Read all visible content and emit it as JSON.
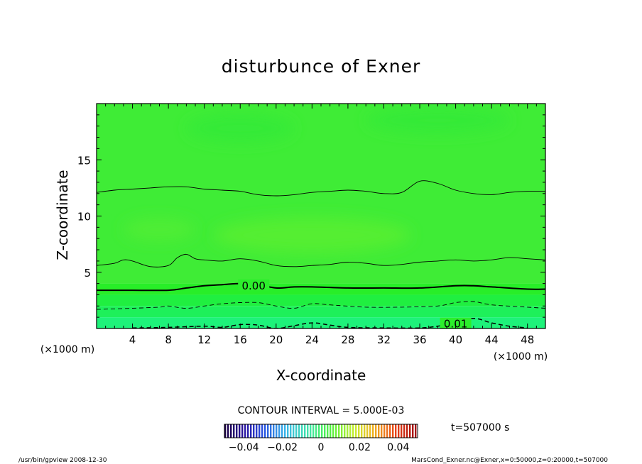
{
  "chart_data": {
    "type": "heatmap",
    "title": "disturbunce of Exner",
    "xlabel": "X-coordinate",
    "ylabel": "Z-coordinate",
    "x_unit": "(×1000 m)",
    "y_unit": "(×1000 m)",
    "xlim": [
      0,
      50
    ],
    "ylim": [
      0,
      20
    ],
    "xticks": [
      4,
      8,
      12,
      16,
      20,
      24,
      28,
      32,
      36,
      40,
      44,
      48
    ],
    "yticks": [
      5,
      10,
      15
    ],
    "colorbar": {
      "min": -0.05,
      "max": 0.05,
      "tick_values": [
        -0.04,
        -0.02,
        0,
        0.02,
        0.04
      ],
      "tick_labels": [
        "−0.04",
        "−0.02",
        "0",
        "0.02",
        "0.04"
      ]
    },
    "contour_labels": [
      {
        "text": "0.00",
        "x": 17.5,
        "z": 3.8
      },
      {
        "text": "0.01",
        "x": 40,
        "z": 0.4
      }
    ],
    "contours": [
      {
        "level": -0.01,
        "style": "solid",
        "points": [
          [
            0,
            12.1
          ],
          [
            2,
            12.3
          ],
          [
            4,
            12.4
          ],
          [
            6,
            12.5
          ],
          [
            8,
            12.6
          ],
          [
            10,
            12.6
          ],
          [
            12,
            12.4
          ],
          [
            14,
            12.3
          ],
          [
            16,
            12.2
          ],
          [
            18,
            11.9
          ],
          [
            20,
            11.8
          ],
          [
            22,
            11.9
          ],
          [
            24,
            12.1
          ],
          [
            26,
            12.2
          ],
          [
            28,
            12.3
          ],
          [
            30,
            12.2
          ],
          [
            32,
            12.0
          ],
          [
            34,
            12.1
          ],
          [
            36,
            13.1
          ],
          [
            38,
            12.9
          ],
          [
            40,
            12.3
          ],
          [
            42,
            12.0
          ],
          [
            44,
            11.9
          ],
          [
            46,
            12.1
          ],
          [
            48,
            12.2
          ],
          [
            50,
            12.2
          ]
        ]
      },
      {
        "level": -0.005,
        "style": "solid",
        "points": [
          [
            0,
            5.6
          ],
          [
            2,
            5.8
          ],
          [
            3,
            6.1
          ],
          [
            4,
            6.0
          ],
          [
            6,
            5.5
          ],
          [
            8,
            5.6
          ],
          [
            9,
            6.3
          ],
          [
            10,
            6.6
          ],
          [
            11,
            6.2
          ],
          [
            12,
            6.1
          ],
          [
            14,
            6.0
          ],
          [
            16,
            6.2
          ],
          [
            18,
            6.0
          ],
          [
            20,
            5.6
          ],
          [
            22,
            5.5
          ],
          [
            24,
            5.6
          ],
          [
            26,
            5.7
          ],
          [
            28,
            5.9
          ],
          [
            30,
            5.8
          ],
          [
            32,
            5.6
          ],
          [
            34,
            5.7
          ],
          [
            36,
            5.9
          ],
          [
            38,
            6.0
          ],
          [
            40,
            6.1
          ],
          [
            42,
            6.0
          ],
          [
            44,
            6.1
          ],
          [
            46,
            6.3
          ],
          [
            48,
            6.2
          ],
          [
            50,
            6.1
          ]
        ]
      },
      {
        "level": 0.0,
        "style": "bold",
        "points": [
          [
            0,
            3.4
          ],
          [
            4,
            3.4
          ],
          [
            8,
            3.4
          ],
          [
            10,
            3.6
          ],
          [
            12,
            3.8
          ],
          [
            14,
            3.9
          ],
          [
            16,
            4.0
          ],
          [
            18,
            3.9
          ],
          [
            20,
            3.6
          ],
          [
            22,
            3.7
          ],
          [
            24,
            3.7
          ],
          [
            28,
            3.6
          ],
          [
            32,
            3.6
          ],
          [
            36,
            3.6
          ],
          [
            40,
            3.8
          ],
          [
            42,
            3.8
          ],
          [
            44,
            3.7
          ],
          [
            48,
            3.5
          ],
          [
            50,
            3.5
          ]
        ]
      },
      {
        "level": 0.005,
        "style": "dashed",
        "points": [
          [
            0,
            1.7
          ],
          [
            4,
            1.8
          ],
          [
            7,
            1.9
          ],
          [
            8,
            2.0
          ],
          [
            10,
            1.8
          ],
          [
            12,
            2.0
          ],
          [
            14,
            2.2
          ],
          [
            16,
            2.3
          ],
          [
            18,
            2.3
          ],
          [
            20,
            2.0
          ],
          [
            22,
            1.8
          ],
          [
            24,
            2.2
          ],
          [
            26,
            2.1
          ],
          [
            30,
            1.9
          ],
          [
            34,
            1.9
          ],
          [
            38,
            2.0
          ],
          [
            40,
            2.3
          ],
          [
            42,
            2.4
          ],
          [
            44,
            2.1
          ],
          [
            48,
            1.9
          ],
          [
            50,
            1.8
          ]
        ]
      },
      {
        "level": 0.01,
        "style": "dashed",
        "points": [
          [
            4,
            0.05
          ],
          [
            8,
            0.1
          ],
          [
            12,
            0.2
          ],
          [
            14,
            0.1
          ],
          [
            16,
            0.35
          ],
          [
            18,
            0.3
          ],
          [
            20,
            0.0
          ],
          [
            22,
            0.25
          ],
          [
            24,
            0.5
          ],
          [
            26,
            0.3
          ],
          [
            28,
            0.1
          ],
          [
            32,
            0.05
          ],
          [
            36,
            0.05
          ],
          [
            38,
            0.2
          ],
          [
            40,
            0.5
          ],
          [
            42,
            0.9
          ],
          [
            44,
            0.5
          ],
          [
            46,
            0.2
          ],
          [
            48,
            0.05
          ]
        ]
      }
    ],
    "bands": [
      {
        "zmin": 0,
        "zmax": 1.0,
        "color": "#1ef27a"
      },
      {
        "zmin": 1.0,
        "zmax": 2.0,
        "color": "#1ef05a"
      },
      {
        "zmin": 2.0,
        "zmax": 3.0,
        "color": "#20ef40"
      },
      {
        "zmin": 3.0,
        "zmax": 4.0,
        "color": "#28ee28"
      },
      {
        "zmin": 4.0,
        "zmax": 20.0,
        "color": "#3fec36"
      }
    ],
    "highlights": [
      {
        "x": 24,
        "z": 8.3,
        "rx": 11,
        "rz": 1.6,
        "color": "#54ee33"
      },
      {
        "x": 7,
        "z": 8.8,
        "rx": 4,
        "rz": 1.0,
        "color": "#4fed35"
      },
      {
        "x": 16,
        "z": 17.8,
        "rx": 6,
        "rz": 1.3,
        "color": "#36ea37"
      },
      {
        "x": 38,
        "z": 18.5,
        "rx": 8,
        "rz": 1.2,
        "color": "#36ea37"
      }
    ]
  },
  "labels": {
    "contour_interval": "CONTOUR INTERVAL = 5.000E-03",
    "time": "t=507000 s",
    "footer_left": "/usr/bin/gpview   2008-12-30",
    "footer_right": "MarsCond_Exner.nc@Exner,x=0:50000,z=0:20000,t=507000"
  }
}
